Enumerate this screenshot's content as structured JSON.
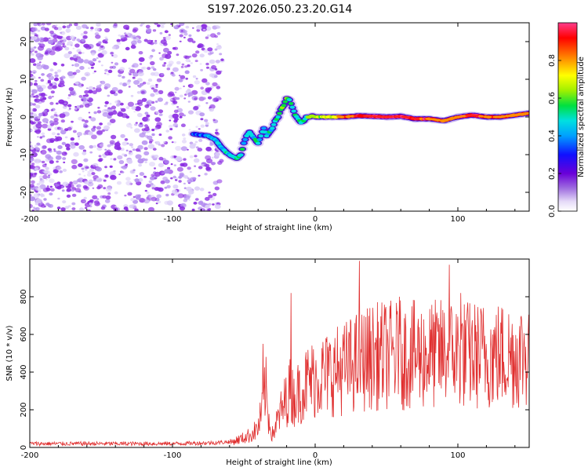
{
  "title": "S197.2026.050.23.20.G14",
  "chart_data": [
    {
      "type": "heatmap",
      "name": "spectrogram",
      "xlabel": "Height of straight line (km)",
      "ylabel": "Frequency (Hz)",
      "xlim": [
        -200,
        150
      ],
      "ylim": [
        -25,
        25
      ],
      "xticks": [
        -200,
        -100,
        0,
        100
      ],
      "xtick_labels": [
        "-200",
        "-100",
        "0",
        "100"
      ],
      "yticks": [
        20,
        10,
        0,
        -10,
        -20
      ],
      "ytick_labels": [
        "20",
        "10",
        "0",
        "-10",
        "-20"
      ],
      "noise_region": {
        "x_from": -200,
        "x_to": -65,
        "note": "scattered purple speckle, low amplitude"
      },
      "ridge": {
        "x": [
          -85,
          -80,
          -75,
          -70,
          -66,
          -62,
          -58,
          -55,
          -52,
          -50,
          -48,
          -46,
          -44,
          -42,
          -40,
          -38,
          -36,
          -34,
          -32,
          -30,
          -28,
          -26,
          -24,
          -22,
          -20,
          -18,
          -16,
          -14,
          -12,
          -10,
          -8,
          -6,
          -4,
          -2,
          0,
          10,
          20,
          30,
          40,
          50,
          60,
          70,
          80,
          90,
          100,
          110,
          120,
          130,
          140,
          150
        ],
        "y": [
          -4.5,
          -4.8,
          -5,
          -6,
          -8,
          -9.5,
          -10.5,
          -11,
          -10,
          -7,
          -5,
          -4,
          -5,
          -6,
          -7,
          -5,
          -3,
          -5,
          -4,
          -3,
          -1,
          0,
          2,
          3,
          5,
          4.5,
          2.5,
          0.5,
          -0.5,
          -1.5,
          -1,
          0,
          0,
          0.3,
          0,
          0,
          0,
          0.3,
          0.2,
          0,
          0.2,
          -0.5,
          -0.5,
          -1,
          0,
          0.5,
          0,
          0,
          0.5,
          1
        ],
        "amplitude": [
          0.3,
          0.3,
          0.35,
          0.4,
          0.4,
          0.45,
          0.45,
          0.5,
          0.45,
          0.45,
          0.4,
          0.4,
          0.4,
          0.45,
          0.45,
          0.45,
          0.4,
          0.4,
          0.45,
          0.45,
          0.45,
          0.5,
          0.5,
          0.55,
          0.5,
          0.5,
          0.45,
          0.45,
          0.45,
          0.45,
          0.5,
          0.5,
          0.55,
          0.55,
          0.6,
          0.65,
          0.8,
          0.9,
          0.9,
          0.95,
          0.95,
          0.9,
          0.85,
          0.8,
          0.85,
          0.9,
          0.85,
          0.85,
          0.8,
          0.8
        ]
      },
      "colorbar": {
        "label": "Normalized spectral amplitude",
        "ticks": [
          0.0,
          0.2,
          0.4,
          0.6,
          0.8
        ],
        "tick_labels": [
          "0.0",
          "0.2",
          "0.4",
          "0.6",
          "0.8"
        ],
        "range": [
          0,
          1
        ],
        "colors": [
          "#ffffff",
          "#d0bdf0",
          "#8a2be2",
          "#2020ff",
          "#00d0ff",
          "#00e060",
          "#ffff00",
          "#ff8000",
          "#ff0000",
          "#ff40a0"
        ]
      }
    },
    {
      "type": "line",
      "name": "snr",
      "xlabel": "Height of straight line (km)",
      "ylabel": "SNR (10 * v/v)",
      "xlim": [
        -200,
        150
      ],
      "ylim": [
        0,
        1000
      ],
      "xticks": [
        -200,
        -100,
        0,
        100
      ],
      "xtick_labels": [
        "-200",
        "-100",
        "0",
        "100"
      ],
      "yticks": [
        0,
        200,
        400,
        600,
        800
      ],
      "ytick_labels": [
        "0",
        "200",
        "400",
        "600",
        "800"
      ],
      "color": "#e03030",
      "envelope": {
        "x": [
          -200,
          -150,
          -100,
          -70,
          -60,
          -50,
          -45,
          -40,
          -38,
          -36,
          -35,
          -33,
          -30,
          -25,
          -20,
          -18,
          -15,
          -10,
          -5,
          0,
          10,
          20,
          30,
          40,
          50,
          60,
          70,
          80,
          90,
          100,
          110,
          120,
          130,
          140,
          150
        ],
        "y": [
          20,
          20,
          20,
          25,
          30,
          60,
          80,
          120,
          200,
          300,
          400,
          200,
          80,
          200,
          300,
          350,
          300,
          350,
          400,
          420,
          450,
          480,
          520,
          550,
          560,
          560,
          560,
          560,
          570,
          570,
          560,
          560,
          560,
          560,
          580
        ]
      },
      "peaks": [
        {
          "x": -36.5,
          "y": 550
        },
        {
          "x": -17,
          "y": 820
        },
        {
          "x": 31,
          "y": 990
        },
        {
          "x": 94,
          "y": 970
        },
        {
          "x": 59,
          "y": 800
        },
        {
          "x": 102,
          "y": 820
        }
      ]
    }
  ]
}
